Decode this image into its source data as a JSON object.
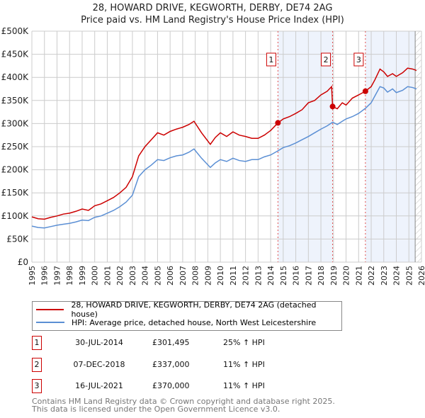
{
  "chart_data": {
    "type": "line",
    "title": "28, HOWARD DRIVE, KEGWORTH, DERBY, DE74 2AG",
    "subtitle": "Price paid vs. HM Land Registry's House Price Index (HPI)",
    "xlim": [
      1995,
      2026
    ],
    "ylim": [
      0,
      500000
    ],
    "x_ticks": [
      "1995",
      "1996",
      "1997",
      "1998",
      "1999",
      "2000",
      "2001",
      "2002",
      "2003",
      "2004",
      "2005",
      "2006",
      "2007",
      "2008",
      "2009",
      "2010",
      "2011",
      "2012",
      "2013",
      "2014",
      "2015",
      "2016",
      "2017",
      "2018",
      "2019",
      "2020",
      "2021",
      "2022",
      "2023",
      "2024",
      "2025",
      "2026"
    ],
    "y_ticks": [
      {
        "v": 0,
        "label": "£0"
      },
      {
        "v": 50000,
        "label": "£50K"
      },
      {
        "v": 100000,
        "label": "£100K"
      },
      {
        "v": 150000,
        "label": "£150K"
      },
      {
        "v": 200000,
        "label": "£200K"
      },
      {
        "v": 250000,
        "label": "£250K"
      },
      {
        "v": 300000,
        "label": "£300K"
      },
      {
        "v": 350000,
        "label": "£350K"
      },
      {
        "v": 400000,
        "label": "£400K"
      },
      {
        "v": 450000,
        "label": "£450K"
      },
      {
        "v": 500000,
        "label": "£500K"
      }
    ],
    "series": [
      {
        "name": "28, HOWARD DRIVE, KEGWORTH, DERBY, DE74 2AG (detached house)",
        "color": "#cc0000",
        "x": [
          1995,
          1995.5,
          1996,
          1996.5,
          1997,
          1997.5,
          1998,
          1998.5,
          1999,
          1999.5,
          2000,
          2000.5,
          2001,
          2001.5,
          2002,
          2002.5,
          2003,
          2003.5,
          2004,
          2004.5,
          2005,
          2005.5,
          2006,
          2006.5,
          2007,
          2007.5,
          2007.9,
          2008.5,
          2009.2,
          2009.6,
          2010,
          2010.5,
          2011,
          2011.5,
          2012,
          2012.5,
          2013,
          2013.5,
          2014,
          2014.58,
          2015,
          2015.5,
          2016,
          2016.5,
          2017,
          2017.5,
          2018,
          2018.5,
          2018.85,
          2018.93,
          2019.3,
          2019.7,
          2020,
          2020.5,
          2021,
          2021.54,
          2022,
          2022.3,
          2022.7,
          2023,
          2023.3,
          2023.7,
          2024,
          2024.5,
          2024.9,
          2025.3,
          2025.6
        ],
        "y": [
          98000,
          94000,
          93000,
          97000,
          100000,
          104000,
          106000,
          110000,
          115000,
          112000,
          122000,
          126000,
          133000,
          140000,
          150000,
          162000,
          185000,
          230000,
          250000,
          265000,
          280000,
          275000,
          283000,
          288000,
          292000,
          298000,
          305000,
          280000,
          255000,
          270000,
          280000,
          272000,
          282000,
          275000,
          272000,
          268000,
          268000,
          275000,
          285000,
          301495,
          310000,
          315000,
          322000,
          330000,
          345000,
          350000,
          362000,
          370000,
          380000,
          337000,
          332000,
          345000,
          340000,
          355000,
          362000,
          370000,
          380000,
          395000,
          418000,
          412000,
          402000,
          408000,
          402000,
          410000,
          420000,
          418000,
          415000
        ]
      },
      {
        "name": "HPI: Average price, detached house, North West Leicestershire",
        "color": "#5b8fd4",
        "x": [
          1995,
          1995.5,
          1996,
          1996.5,
          1997,
          1997.5,
          1998,
          1998.5,
          1999,
          1999.5,
          2000,
          2000.5,
          2001,
          2001.5,
          2002,
          2002.5,
          2003,
          2003.5,
          2004,
          2004.5,
          2005,
          2005.5,
          2006,
          2006.5,
          2007,
          2007.5,
          2007.9,
          2008.5,
          2009.2,
          2009.6,
          2010,
          2010.5,
          2011,
          2011.5,
          2012,
          2012.5,
          2013,
          2013.5,
          2014,
          2014.58,
          2015,
          2015.5,
          2016,
          2016.5,
          2017,
          2017.5,
          2018,
          2018.5,
          2018.93,
          2019.3,
          2019.7,
          2020,
          2020.5,
          2021,
          2021.54,
          2022,
          2022.3,
          2022.7,
          2023,
          2023.3,
          2023.7,
          2024,
          2024.5,
          2024.9,
          2025.3,
          2025.6
        ],
        "y": [
          78000,
          75000,
          74000,
          77000,
          80000,
          82000,
          84000,
          87000,
          91000,
          90000,
          97000,
          100000,
          106000,
          112000,
          120000,
          130000,
          145000,
          185000,
          200000,
          210000,
          222000,
          220000,
          226000,
          230000,
          232000,
          238000,
          245000,
          225000,
          205000,
          215000,
          222000,
          218000,
          225000,
          220000,
          218000,
          222000,
          222000,
          228000,
          232000,
          241000,
          248000,
          252000,
          258000,
          265000,
          272000,
          280000,
          288000,
          295000,
          303000,
          298000,
          305000,
          310000,
          315000,
          322000,
          333000,
          345000,
          360000,
          380000,
          377000,
          368000,
          375000,
          367000,
          372000,
          380000,
          378000,
          375000
        ]
      }
    ],
    "sales": [
      {
        "n": "1",
        "x": 2014.58,
        "y": 301495
      },
      {
        "n": "2",
        "x": 2018.93,
        "y": 337000
      },
      {
        "n": "3",
        "x": 2021.54,
        "y": 370000
      }
    ],
    "shaded": [
      [
        2014.58,
        2018.93
      ],
      [
        2021.54,
        2025.5
      ]
    ],
    "hatched_from": 2025.5,
    "legend": "bottom"
  },
  "table": [
    {
      "n": "1",
      "date": "30-JUL-2014",
      "price": "£301,495",
      "hpi": "25% ↑ HPI"
    },
    {
      "n": "2",
      "date": "07-DEC-2018",
      "price": "£337,000",
      "hpi": "11% ↑ HPI"
    },
    {
      "n": "3",
      "date": "16-JUL-2021",
      "price": "£370,000",
      "hpi": "11% ↑ HPI"
    }
  ],
  "footer": [
    "Contains HM Land Registry data © Crown copyright and database right 2025.",
    "This data is licensed under the Open Government Licence v3.0."
  ]
}
